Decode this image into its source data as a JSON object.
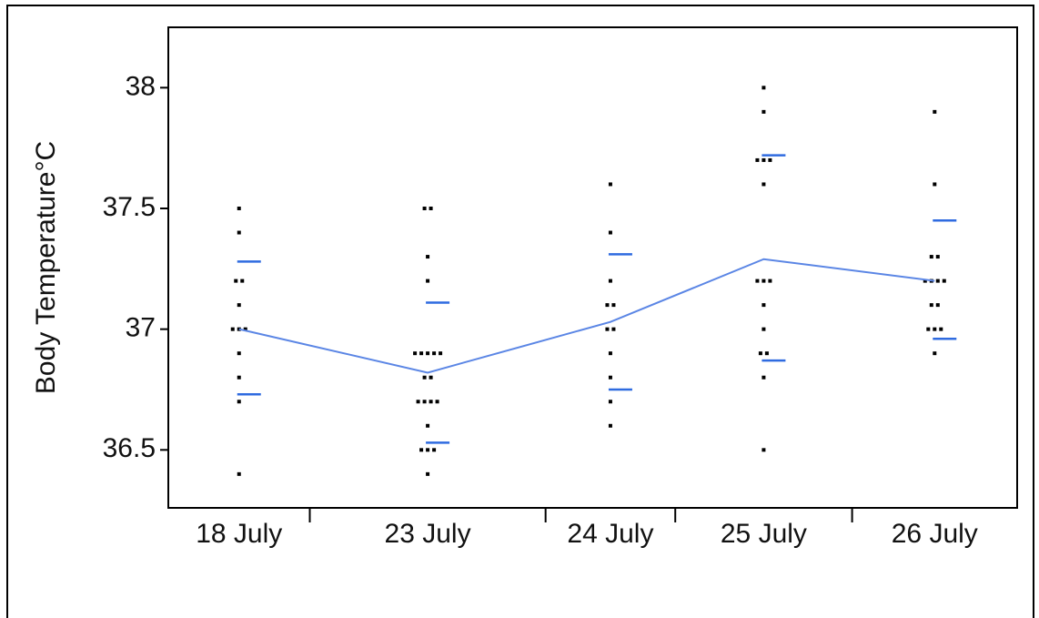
{
  "chart_data": {
    "type": "oneway",
    "y_label": "Body Temperature°C",
    "categories": [
      "18 July",
      "23 July",
      "24 July",
      "25 July",
      "26 July"
    ],
    "points": [
      [
        37.5,
        37.4,
        37.2,
        37.2,
        37.1,
        37.0,
        37.0,
        37.0,
        36.9,
        36.8,
        36.7,
        36.4
      ],
      [
        37.5,
        37.5,
        37.3,
        37.2,
        36.9,
        36.9,
        36.9,
        36.9,
        36.9,
        36.8,
        36.8,
        36.7,
        36.7,
        36.7,
        36.7,
        36.6,
        36.5,
        36.5,
        36.5,
        36.4
      ],
      [
        37.6,
        37.4,
        37.2,
        37.1,
        37.1,
        37.0,
        37.0,
        36.9,
        36.8,
        36.7,
        36.6
      ],
      [
        38.0,
        37.9,
        37.7,
        37.7,
        37.7,
        37.6,
        37.2,
        37.2,
        37.2,
        37.1,
        37.0,
        36.9,
        36.9,
        36.8,
        36.5
      ],
      [
        37.9,
        37.6,
        37.3,
        37.3,
        37.2,
        37.2,
        37.2,
        37.2,
        37.1,
        37.1,
        37.0,
        37.0,
        37.0,
        36.9
      ]
    ],
    "means": [
      37.0,
      36.82,
      37.03,
      37.29,
      37.2
    ],
    "sd_upper": [
      37.28,
      37.11,
      37.31,
      37.72,
      37.45
    ],
    "sd_lower": [
      36.73,
      36.53,
      36.75,
      36.87,
      36.96
    ],
    "point_color": "#000000",
    "line_color": "#5b86e5",
    "sd_color": "#2f6be0",
    "ylim": [
      36.26,
      38.25
    ],
    "yticks": [
      36.5,
      37,
      37.5,
      38
    ]
  }
}
